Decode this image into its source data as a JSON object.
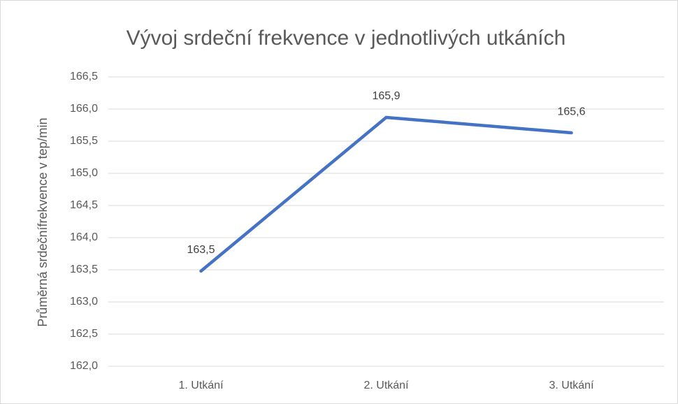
{
  "chart_data": {
    "type": "line",
    "title": "Vývoj srdeční frekvence v jednotlivých utkáních",
    "y_label": "Průměrná srdečnífrekvence v tep/min",
    "categories": [
      "1. Utkání",
      "2. Utkání",
      "3. Utkání"
    ],
    "series": [
      {
        "name": "Průměrná srdeční frekvence",
        "color": "#4472c4",
        "values": [
          163.48,
          165.87,
          165.63
        ],
        "value_labels": [
          "163,5",
          "165,9",
          "165,6"
        ]
      }
    ],
    "ylim": [
      162.0,
      166.5
    ],
    "yticks": [
      {
        "value": 162.0,
        "label": "162,0"
      },
      {
        "value": 162.5,
        "label": "162,5"
      },
      {
        "value": 163.0,
        "label": "163,0"
      },
      {
        "value": 163.5,
        "label": "163,5"
      },
      {
        "value": 164.0,
        "label": "164,0"
      },
      {
        "value": 164.5,
        "label": "164,5"
      },
      {
        "value": 165.0,
        "label": "165,0"
      },
      {
        "value": 165.5,
        "label": "165,5"
      },
      {
        "value": 166.0,
        "label": "166,0"
      },
      {
        "value": 166.5,
        "label": "166,5"
      }
    ],
    "grid": true
  }
}
